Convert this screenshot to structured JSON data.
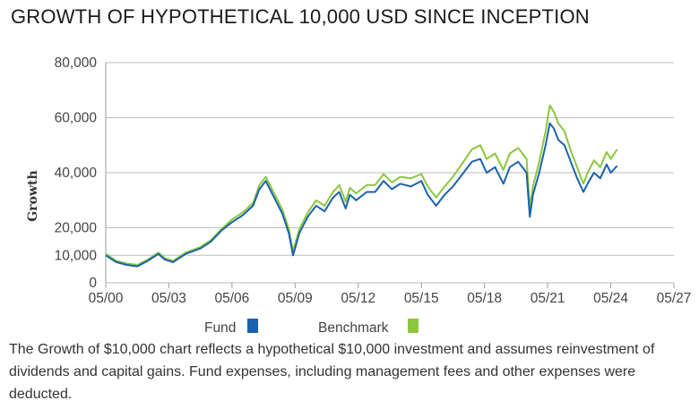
{
  "chart_data": {
    "type": "line",
    "title": "GROWTH OF HYPOTHETICAL 10,000 USD SINCE INCEPTION",
    "ylabel": "Growth",
    "xlabel": "",
    "ylim": [
      0,
      80000
    ],
    "yticks": [
      0,
      10000,
      20000,
      40000,
      60000,
      80000
    ],
    "ytick_labels": [
      "0",
      "10,000",
      "20,000",
      "40,000",
      "60,000",
      "80,000"
    ],
    "xlim": [
      2000.0,
      2027.0
    ],
    "xticks": [
      2000,
      2003,
      2006,
      2009,
      2012,
      2015,
      2018,
      2021,
      2024,
      2027
    ],
    "xtick_labels": [
      "05/00",
      "05/03",
      "05/06",
      "05/09",
      "05/12",
      "05/15",
      "05/18",
      "05/21",
      "05/24",
      "05/27"
    ],
    "grid": true,
    "legend": "bottom",
    "series": [
      {
        "name": "Fund",
        "color": "#1a62ad",
        "x": [
          2000.0,
          2000.5,
          2001.0,
          2001.5,
          2002.0,
          2002.5,
          2002.8,
          2003.2,
          2003.8,
          2004.5,
          2005.0,
          2005.5,
          2006.0,
          2006.5,
          2007.0,
          2007.3,
          2007.6,
          2008.0,
          2008.4,
          2008.7,
          2008.9,
          2009.2,
          2009.6,
          2010.0,
          2010.4,
          2010.8,
          2011.1,
          2011.4,
          2011.6,
          2011.9,
          2012.4,
          2012.8,
          2013.2,
          2013.6,
          2014.0,
          2014.5,
          2015.0,
          2015.3,
          2015.7,
          2016.1,
          2016.5,
          2017.0,
          2017.4,
          2017.8,
          2018.1,
          2018.5,
          2018.9,
          2019.2,
          2019.6,
          2020.0,
          2020.15,
          2020.3,
          2020.6,
          2020.9,
          2021.1,
          2021.3,
          2021.5,
          2021.8,
          2022.1,
          2022.4,
          2022.7,
          2022.9,
          2023.2,
          2023.5,
          2023.8,
          2024.0,
          2024.3
        ],
        "values": [
          10000,
          7500,
          6500,
          6000,
          8000,
          10500,
          8500,
          7500,
          10500,
          12500,
          15000,
          19000,
          22000,
          24500,
          28000,
          34000,
          37000,
          31000,
          25000,
          18000,
          10000,
          18000,
          24000,
          28000,
          26000,
          31000,
          33000,
          27000,
          32000,
          30000,
          33000,
          33000,
          37000,
          34000,
          36000,
          35000,
          37000,
          32000,
          28000,
          32000,
          35000,
          40000,
          44000,
          45000,
          40000,
          42000,
          36000,
          42000,
          44000,
          40000,
          24000,
          32000,
          40000,
          50000,
          58000,
          56000,
          52000,
          50000,
          44000,
          38000,
          33000,
          36000,
          40000,
          38000,
          43000,
          40000,
          42500
        ]
      },
      {
        "name": "Benchmark",
        "color": "#8cc63f",
        "x": [
          2000.0,
          2000.5,
          2001.0,
          2001.5,
          2002.0,
          2002.5,
          2002.8,
          2003.2,
          2003.8,
          2004.5,
          2005.0,
          2005.5,
          2006.0,
          2006.5,
          2007.0,
          2007.3,
          2007.6,
          2008.0,
          2008.4,
          2008.7,
          2008.9,
          2009.2,
          2009.6,
          2010.0,
          2010.4,
          2010.8,
          2011.1,
          2011.4,
          2011.6,
          2011.9,
          2012.4,
          2012.8,
          2013.2,
          2013.6,
          2014.0,
          2014.5,
          2015.0,
          2015.3,
          2015.7,
          2016.1,
          2016.5,
          2017.0,
          2017.4,
          2017.8,
          2018.1,
          2018.5,
          2018.9,
          2019.2,
          2019.6,
          2020.0,
          2020.15,
          2020.3,
          2020.6,
          2020.9,
          2021.1,
          2021.3,
          2021.5,
          2021.8,
          2022.1,
          2022.4,
          2022.7,
          2022.9,
          2023.2,
          2023.5,
          2023.8,
          2024.0,
          2024.3
        ],
        "values": [
          10500,
          8000,
          7000,
          6500,
          8500,
          11000,
          9000,
          8000,
          11000,
          13000,
          15500,
          19500,
          23000,
          25500,
          29000,
          35500,
          38500,
          32500,
          26500,
          19500,
          11500,
          19500,
          25500,
          30000,
          28000,
          33000,
          35500,
          29500,
          34500,
          32500,
          35500,
          35500,
          39500,
          36500,
          38500,
          38000,
          39500,
          35000,
          31000,
          35000,
          38500,
          44000,
          48500,
          50000,
          45000,
          47000,
          41000,
          47000,
          49000,
          45000,
          27000,
          35000,
          44000,
          55000,
          64500,
          62000,
          58000,
          55000,
          48000,
          42000,
          36000,
          40000,
          44500,
          42000,
          47500,
          45000,
          48500
        ]
      }
    ]
  },
  "footnote": "The Growth of $10,000 chart reflects a hypothetical $10,000 investment and assumes reinvestment of dividends and capital gains. Fund expenses, including management fees and other expenses were deducted."
}
